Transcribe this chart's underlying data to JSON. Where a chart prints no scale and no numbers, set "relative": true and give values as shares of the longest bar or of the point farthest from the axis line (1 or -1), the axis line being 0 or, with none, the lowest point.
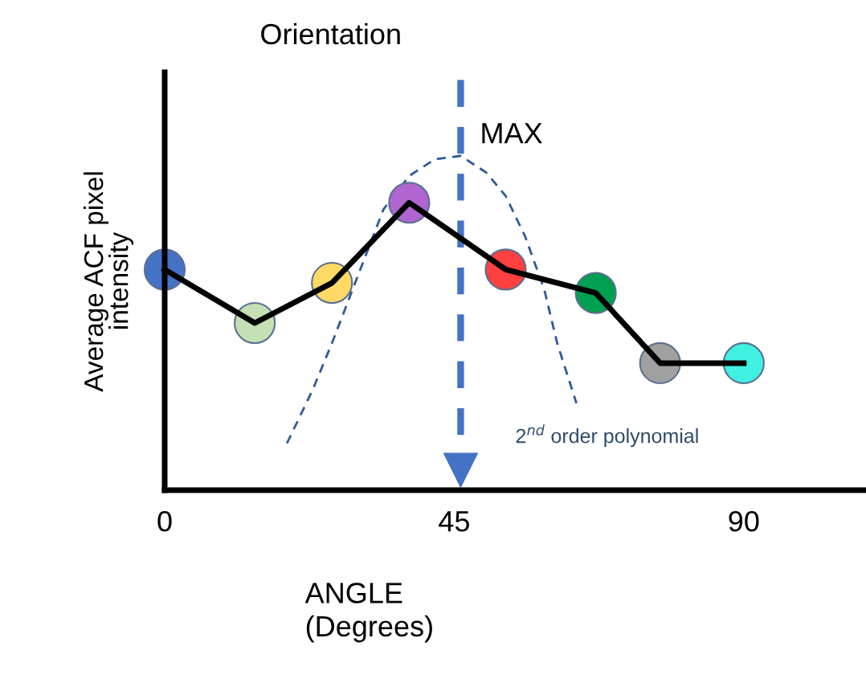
{
  "chart_data": {
    "type": "line",
    "title": "Orientation",
    "xlabel": "ANGLE\n(Degrees)",
    "ylabel": "Average ACF pixel\nintensity",
    "relative": true,
    "tick_labels": "x",
    "xlim": [
      0,
      109
    ],
    "xticks": [
      0,
      45,
      90
    ],
    "grid": false,
    "legend": false,
    "series": [
      {
        "color": "#000000",
        "marker": "none",
        "line_style": "solid",
        "x": [
          0,
          14,
          26,
          38,
          53,
          67,
          77,
          90
        ],
        "values": [
          0.66,
          0.5,
          0.62,
          0.86,
          0.66,
          0.59,
          0.38,
          0.38
        ]
      },
      {
        "type": "scatter",
        "colors": [
          "#4472c4",
          "#c5e0b4",
          "#ffd966",
          "#b065d0",
          "#ff4040",
          "#00a050",
          "#a0a0a0",
          "#40f0e0"
        ],
        "marker": "circle",
        "x": [
          0,
          14,
          26,
          38,
          53,
          67,
          77,
          90
        ],
        "values": [
          0.66,
          0.5,
          0.62,
          0.86,
          0.66,
          0.59,
          0.38,
          0.38
        ]
      },
      {
        "color": "#2e5a9a",
        "marker": "none",
        "line_style": "dashed",
        "x": [
          19,
          23,
          26,
          30,
          34,
          38,
          42,
          46,
          50,
          53,
          56,
          59,
          61,
          64
        ],
        "values": [
          0.14,
          0.3,
          0.44,
          0.64,
          0.84,
          0.94,
          0.99,
          1,
          0.95,
          0.88,
          0.76,
          0.6,
          0.44,
          0.26
        ]
      }
    ],
    "ref_lines": [
      {
        "axis": "x",
        "value": 46,
        "label": "MAX",
        "color": "#4472c4",
        "line_style": "dashed"
      }
    ],
    "annotations": [
      "2$^{nd}$ order polynomial"
    ]
  }
}
